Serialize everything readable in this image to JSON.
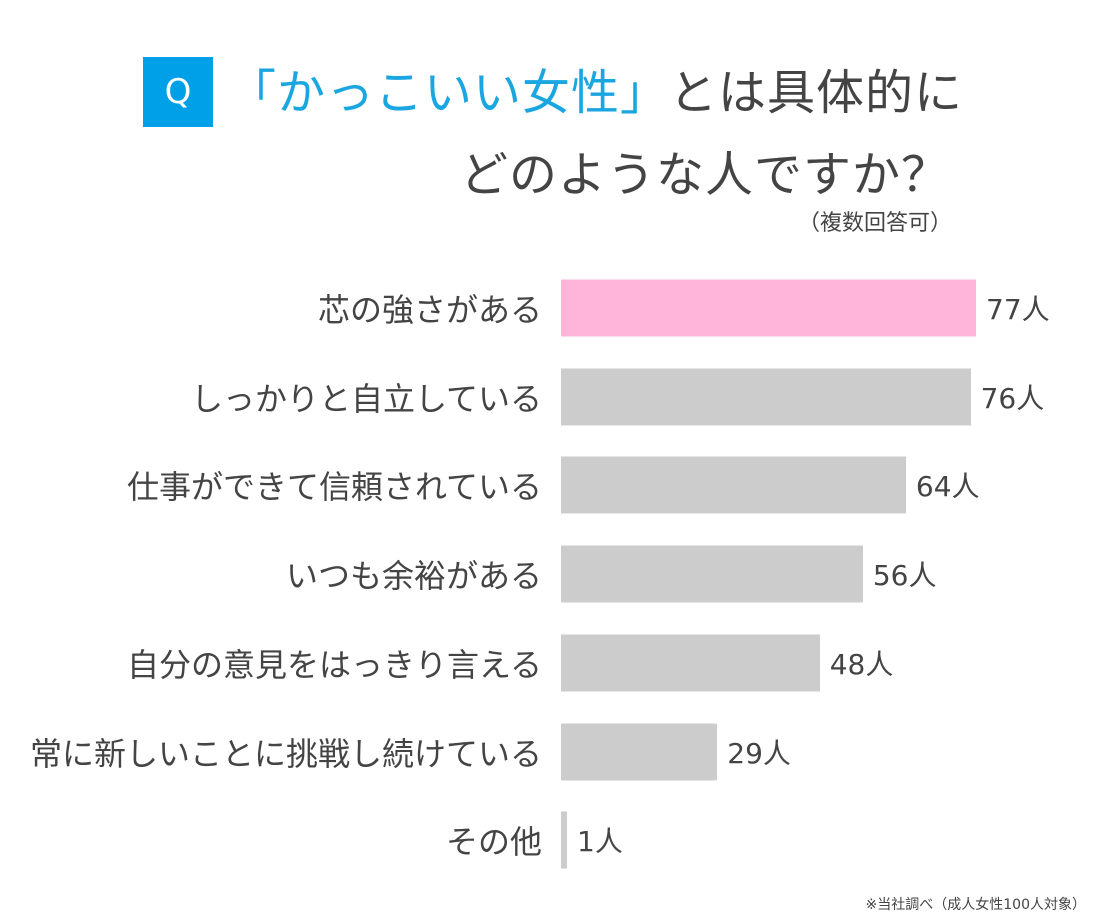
{
  "title": {
    "q_badge": "Q",
    "highlight": "「かっこいい女性」",
    "line1_rest": "とは具体的に",
    "line2": "どのような人ですか？",
    "subtitle": "（複数回答可）"
  },
  "footnote": "※当社調べ（成人女性100人対象）",
  "colors": {
    "highlight_bar": "#ffb4d9",
    "bar": "#cccccc",
    "accent": "#00a0e9"
  },
  "chart_data": {
    "type": "bar",
    "orientation": "horizontal",
    "unit": "人",
    "categories": [
      "芯の強さがある",
      "しっかりと自立している",
      "仕事ができて信頼されている",
      "いつも余裕がある",
      "自分の意見をはっきり言える",
      "常に新しいことに挑戦し続けている",
      "その他"
    ],
    "values": [
      77,
      76,
      64,
      56,
      48,
      29,
      1
    ],
    "value_labels": [
      "77人",
      "76人",
      "64人",
      "56人",
      "48人",
      "29人",
      "1人"
    ],
    "highlighted_index": 0,
    "grid": false
  }
}
